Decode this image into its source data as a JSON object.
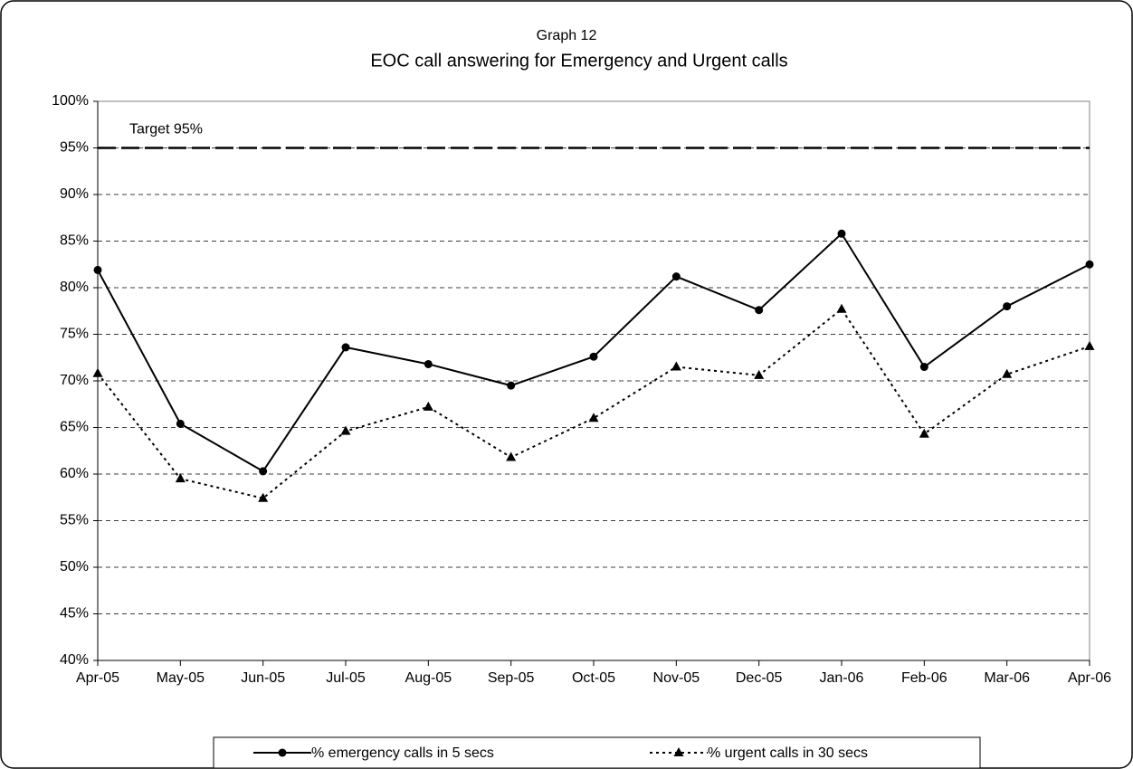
{
  "chart_data": {
    "type": "line",
    "title": "Graph 12",
    "subtitle": "EOC call answering for Emergency and Urgent calls",
    "categories": [
      "Apr-05",
      "May-05",
      "Jun-05",
      "Jul-05",
      "Aug-05",
      "Sep-05",
      "Oct-05",
      "Nov-05",
      "Dec-05",
      "Jan-06",
      "Feb-06",
      "Mar-06",
      "Apr-06"
    ],
    "series": [
      {
        "name": "% emergency calls in 5 secs",
        "color": "#000000",
        "style": "solid",
        "marker": "circle",
        "values": [
          81.9,
          65.4,
          60.3,
          73.6,
          71.8,
          69.5,
          72.6,
          81.2,
          77.6,
          85.8,
          71.5,
          78.0,
          82.5
        ]
      },
      {
        "name": "% urgent calls in 30 secs",
        "color": "#000000",
        "style": "dotted",
        "marker": "triangle",
        "values": [
          70.8,
          59.5,
          57.4,
          64.6,
          67.2,
          61.8,
          66.0,
          71.5,
          70.6,
          77.7,
          64.3,
          70.7,
          73.7
        ]
      }
    ],
    "target": {
      "value": 95,
      "label": "Target 95%"
    },
    "ylim": [
      40,
      100
    ],
    "yticks": [
      {
        "value": 40,
        "label": "40%"
      },
      {
        "value": 45,
        "label": "45%"
      },
      {
        "value": 50,
        "label": "50%"
      },
      {
        "value": 55,
        "label": "55%"
      },
      {
        "value": 60,
        "label": "60%"
      },
      {
        "value": 65,
        "label": "65%"
      },
      {
        "value": 70,
        "label": "70%"
      },
      {
        "value": 75,
        "label": "75%"
      },
      {
        "value": 80,
        "label": "80%"
      },
      {
        "value": 85,
        "label": "85%"
      },
      {
        "value": 90,
        "label": "90%"
      },
      {
        "value": 95,
        "label": "95%"
      },
      {
        "value": 100,
        "label": "100%"
      }
    ],
    "grid": true,
    "legend": "bottom"
  }
}
